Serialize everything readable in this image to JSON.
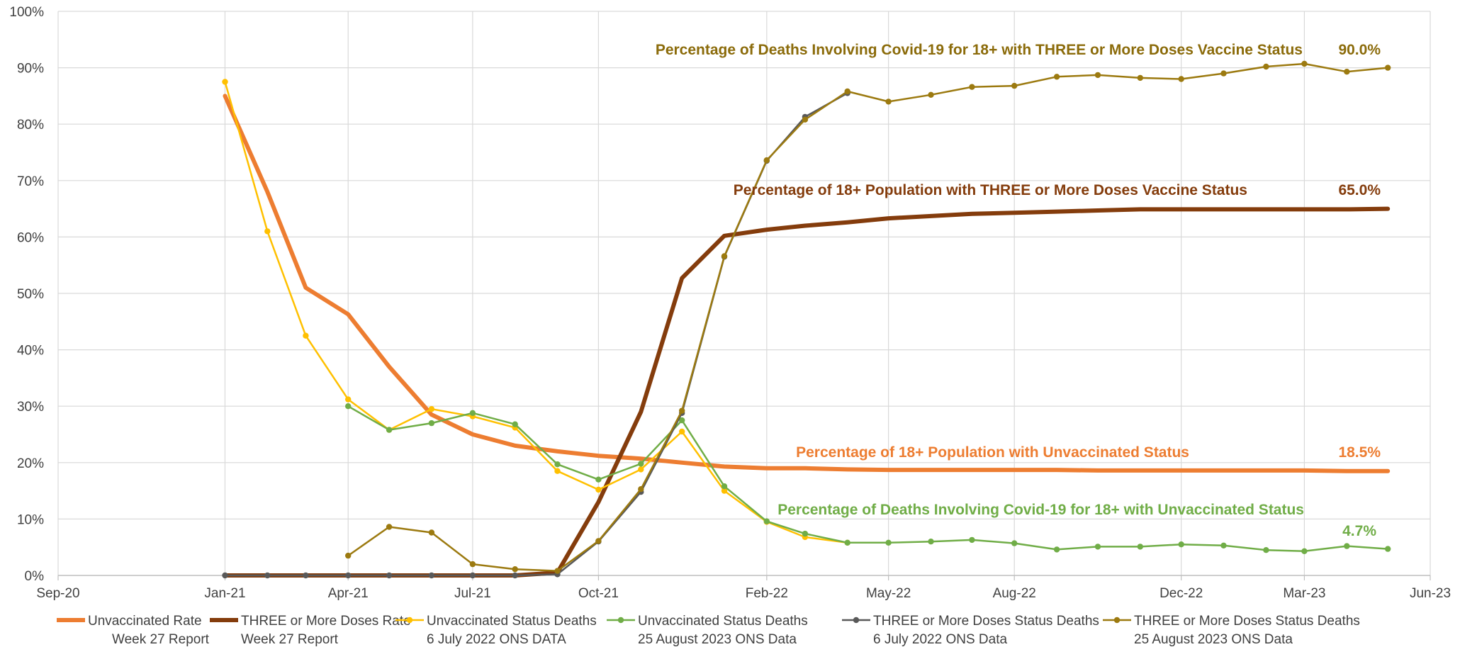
{
  "chart_data": {
    "type": "line",
    "title": "",
    "xlabel": "",
    "ylabel": "",
    "ylim": [
      0,
      100
    ],
    "xlim": [
      "2020-09-01",
      "2023-06-01"
    ],
    "grid": true,
    "legend_position": "bottom",
    "y_ticks": [
      "0%",
      "10%",
      "20%",
      "30%",
      "40%",
      "50%",
      "60%",
      "70%",
      "80%",
      "90%",
      "100%"
    ],
    "x_ticks": [
      {
        "date": "2020-09-01",
        "label": "Sep-20"
      },
      {
        "date": "2021-01-01",
        "label": "Jan-21"
      },
      {
        "date": "2021-04-01",
        "label": "Apr-21"
      },
      {
        "date": "2021-07-01",
        "label": "Jul-21"
      },
      {
        "date": "2021-10-01",
        "label": "Oct-21"
      },
      {
        "date": "2022-02-01",
        "label": "Feb-22"
      },
      {
        "date": "2022-05-01",
        "label": "May-22"
      },
      {
        "date": "2022-08-01",
        "label": "Aug-22"
      },
      {
        "date": "2022-12-01",
        "label": "Dec-22"
      },
      {
        "date": "2023-03-01",
        "label": "Mar-23"
      },
      {
        "date": "2023-06-01",
        "label": "Jun-23"
      }
    ],
    "series": [
      {
        "name": "Unvaccinated Rate Week 27 Report",
        "legend_lines": [
          "Unvaccinated Rate",
          "Week 27 Report"
        ],
        "color": "#ED7D31",
        "stroke": 6,
        "marker": false,
        "points": [
          [
            "2021-01-01",
            85.0
          ],
          [
            "2021-02-01",
            68.0
          ],
          [
            "2021-03-01",
            51.0
          ],
          [
            "2021-04-01",
            46.3
          ],
          [
            "2021-05-01",
            37.0
          ],
          [
            "2021-06-01",
            28.5
          ],
          [
            "2021-07-01",
            25.0
          ],
          [
            "2021-08-01",
            23.0
          ],
          [
            "2021-09-01",
            22.0
          ],
          [
            "2021-10-01",
            21.2
          ],
          [
            "2021-11-01",
            20.7
          ],
          [
            "2021-12-01",
            20.0
          ],
          [
            "2022-01-01",
            19.3
          ],
          [
            "2022-02-01",
            19.0
          ],
          [
            "2022-03-01",
            19.0
          ],
          [
            "2022-04-01",
            18.8
          ],
          [
            "2022-05-01",
            18.7
          ],
          [
            "2022-06-01",
            18.7
          ],
          [
            "2022-07-01",
            18.7
          ],
          [
            "2022-08-01",
            18.7
          ],
          [
            "2022-09-01",
            18.7
          ],
          [
            "2022-10-01",
            18.6
          ],
          [
            "2022-11-01",
            18.6
          ],
          [
            "2022-12-01",
            18.6
          ],
          [
            "2023-01-01",
            18.6
          ],
          [
            "2023-02-01",
            18.6
          ],
          [
            "2023-03-01",
            18.6
          ],
          [
            "2023-04-01",
            18.5
          ],
          [
            "2023-05-01",
            18.5
          ]
        ]
      },
      {
        "name": "THREE or More Doses Rate Week 27 Report",
        "legend_lines": [
          "THREE or More Doses Rate",
          "Week 27 Report"
        ],
        "color": "#843C0C",
        "stroke": 6,
        "marker": false,
        "points": [
          [
            "2021-01-01",
            0
          ],
          [
            "2021-02-01",
            0
          ],
          [
            "2021-03-01",
            0
          ],
          [
            "2021-04-01",
            0
          ],
          [
            "2021-05-01",
            0
          ],
          [
            "2021-06-01",
            0
          ],
          [
            "2021-07-01",
            0
          ],
          [
            "2021-08-01",
            0
          ],
          [
            "2021-09-01",
            0.5
          ],
          [
            "2021-10-01",
            13.0
          ],
          [
            "2021-11-01",
            29.0
          ],
          [
            "2021-12-01",
            52.7
          ],
          [
            "2022-01-01",
            60.2
          ],
          [
            "2022-02-01",
            61.3
          ],
          [
            "2022-03-01",
            62.0
          ],
          [
            "2022-04-01",
            62.6
          ],
          [
            "2022-05-01",
            63.3
          ],
          [
            "2022-06-01",
            63.7
          ],
          [
            "2022-07-01",
            64.1
          ],
          [
            "2022-08-01",
            64.3
          ],
          [
            "2022-09-01",
            64.5
          ],
          [
            "2022-10-01",
            64.7
          ],
          [
            "2022-11-01",
            64.9
          ],
          [
            "2022-12-01",
            64.9
          ],
          [
            "2023-01-01",
            64.9
          ],
          [
            "2023-02-01",
            64.9
          ],
          [
            "2023-03-01",
            64.9
          ],
          [
            "2023-04-01",
            64.9
          ],
          [
            "2023-05-01",
            65.0
          ]
        ]
      },
      {
        "name": "Unvaccinated Status Deaths 6 July 2022 ONS DATA",
        "legend_lines": [
          "Unvaccinated Status Deaths",
          "6 July 2022 ONS DATA"
        ],
        "color": "#FFC000",
        "stroke": 2.5,
        "marker": true,
        "points": [
          [
            "2021-01-01",
            87.5
          ],
          [
            "2021-02-01",
            61.0
          ],
          [
            "2021-03-01",
            42.5
          ],
          [
            "2021-04-01",
            31.2
          ],
          [
            "2021-05-01",
            25.8
          ],
          [
            "2021-06-01",
            29.5
          ],
          [
            "2021-07-01",
            28.2
          ],
          [
            "2021-08-01",
            26.2
          ],
          [
            "2021-09-01",
            18.5
          ],
          [
            "2021-10-01",
            15.2
          ],
          [
            "2021-11-01",
            18.8
          ],
          [
            "2021-12-01",
            25.5
          ],
          [
            "2022-01-01",
            15.0
          ],
          [
            "2022-02-01",
            9.5
          ],
          [
            "2022-03-01",
            6.8
          ],
          [
            "2022-04-01",
            5.8
          ]
        ]
      },
      {
        "name": "Unvaccinated Status Deaths 25 August 2023 ONS Data",
        "legend_lines": [
          "Unvaccinated Status Deaths",
          "25 August 2023 ONS Data"
        ],
        "color": "#70AD47",
        "stroke": 2.5,
        "marker": true,
        "points": [
          [
            "2021-04-01",
            30.0
          ],
          [
            "2021-05-01",
            25.8
          ],
          [
            "2021-06-01",
            27.0
          ],
          [
            "2021-07-01",
            28.8
          ],
          [
            "2021-08-01",
            26.8
          ],
          [
            "2021-09-01",
            19.7
          ],
          [
            "2021-10-01",
            17.0
          ],
          [
            "2021-11-01",
            19.8
          ],
          [
            "2021-12-01",
            27.5
          ],
          [
            "2022-01-01",
            15.8
          ],
          [
            "2022-02-01",
            9.6
          ],
          [
            "2022-03-01",
            7.4
          ],
          [
            "2022-04-01",
            5.8
          ],
          [
            "2022-05-01",
            5.8
          ],
          [
            "2022-06-01",
            6.0
          ],
          [
            "2022-07-01",
            6.3
          ],
          [
            "2022-08-01",
            5.7
          ],
          [
            "2022-09-01",
            4.6
          ],
          [
            "2022-10-01",
            5.1
          ],
          [
            "2022-11-01",
            5.1
          ],
          [
            "2022-12-01",
            5.5
          ],
          [
            "2023-01-01",
            5.3
          ],
          [
            "2023-02-01",
            4.5
          ],
          [
            "2023-03-01",
            4.3
          ],
          [
            "2023-04-01",
            5.2
          ],
          [
            "2023-05-01",
            4.7
          ]
        ]
      },
      {
        "name": "THREE or More Doses Status Deaths 6 July 2022 ONS Data",
        "legend_lines": [
          "THREE or More Doses Status Deaths",
          "6 July 2022 ONS Data"
        ],
        "color": "#595959",
        "stroke": 2.5,
        "marker": true,
        "points": [
          [
            "2021-01-01",
            0
          ],
          [
            "2021-02-01",
            0
          ],
          [
            "2021-03-01",
            0
          ],
          [
            "2021-04-01",
            0
          ],
          [
            "2021-05-01",
            0
          ],
          [
            "2021-06-01",
            0
          ],
          [
            "2021-07-01",
            0
          ],
          [
            "2021-08-01",
            0
          ],
          [
            "2021-09-01",
            0.2
          ],
          [
            "2021-10-01",
            6.0
          ],
          [
            "2021-11-01",
            14.8
          ],
          [
            "2021-12-01",
            28.8
          ],
          [
            "2022-01-01",
            56.5
          ],
          [
            "2022-02-01",
            73.5
          ],
          [
            "2022-03-01",
            81.3
          ],
          [
            "2022-04-01",
            85.5
          ]
        ]
      },
      {
        "name": "THREE or More Doses Status Deaths 25 August 2023 ONS Data",
        "legend_lines": [
          "THREE or More Doses Status Deaths",
          "25 August 2023 ONS Data"
        ],
        "color": "#9C7A10",
        "stroke": 2.5,
        "marker": true,
        "points": [
          [
            "2021-04-01",
            3.5
          ],
          [
            "2021-05-01",
            8.6
          ],
          [
            "2021-06-01",
            7.6
          ],
          [
            "2021-07-01",
            2.0
          ],
          [
            "2021-08-01",
            1.1
          ],
          [
            "2021-09-01",
            0.8
          ],
          [
            "2021-10-01",
            6.1
          ],
          [
            "2021-11-01",
            15.3
          ],
          [
            "2021-12-01",
            29.2
          ],
          [
            "2022-01-01",
            56.6
          ],
          [
            "2022-02-01",
            73.6
          ],
          [
            "2022-03-01",
            80.8
          ],
          [
            "2022-04-01",
            85.8
          ],
          [
            "2022-05-01",
            84.0
          ],
          [
            "2022-06-01",
            85.2
          ],
          [
            "2022-07-01",
            86.6
          ],
          [
            "2022-08-01",
            86.8
          ],
          [
            "2022-09-01",
            88.4
          ],
          [
            "2022-10-01",
            88.7
          ],
          [
            "2022-11-01",
            88.2
          ],
          [
            "2022-12-01",
            88.0
          ],
          [
            "2023-01-01",
            89.0
          ],
          [
            "2023-02-01",
            90.2
          ],
          [
            "2023-03-01",
            90.7
          ],
          [
            "2023-04-01",
            89.3
          ],
          [
            "2023-05-01",
            90.0
          ]
        ]
      }
    ],
    "annotations": [
      {
        "text": "Percentage of Deaths Involving Covid-19 for 18+ with THREE or More Doses Vaccine Status",
        "color": "#8B6B0A"
      },
      {
        "text": "90.0%",
        "color": "#8B6B0A"
      },
      {
        "text": "Percentage of 18+ Population with THREE or More Doses Vaccine Status",
        "color": "#843C0C"
      },
      {
        "text": "65.0%",
        "color": "#843C0C"
      },
      {
        "text": "Percentage of 18+ Population with Unvaccinated Status",
        "color": "#ED7D31"
      },
      {
        "text": "18.5%",
        "color": "#ED7D31"
      },
      {
        "text": "Percentage of Deaths Involving Covid-19 for 18+ with Unvaccinated Status",
        "color": "#70AD47"
      },
      {
        "text": "4.7%",
        "color": "#70AD47"
      }
    ]
  }
}
